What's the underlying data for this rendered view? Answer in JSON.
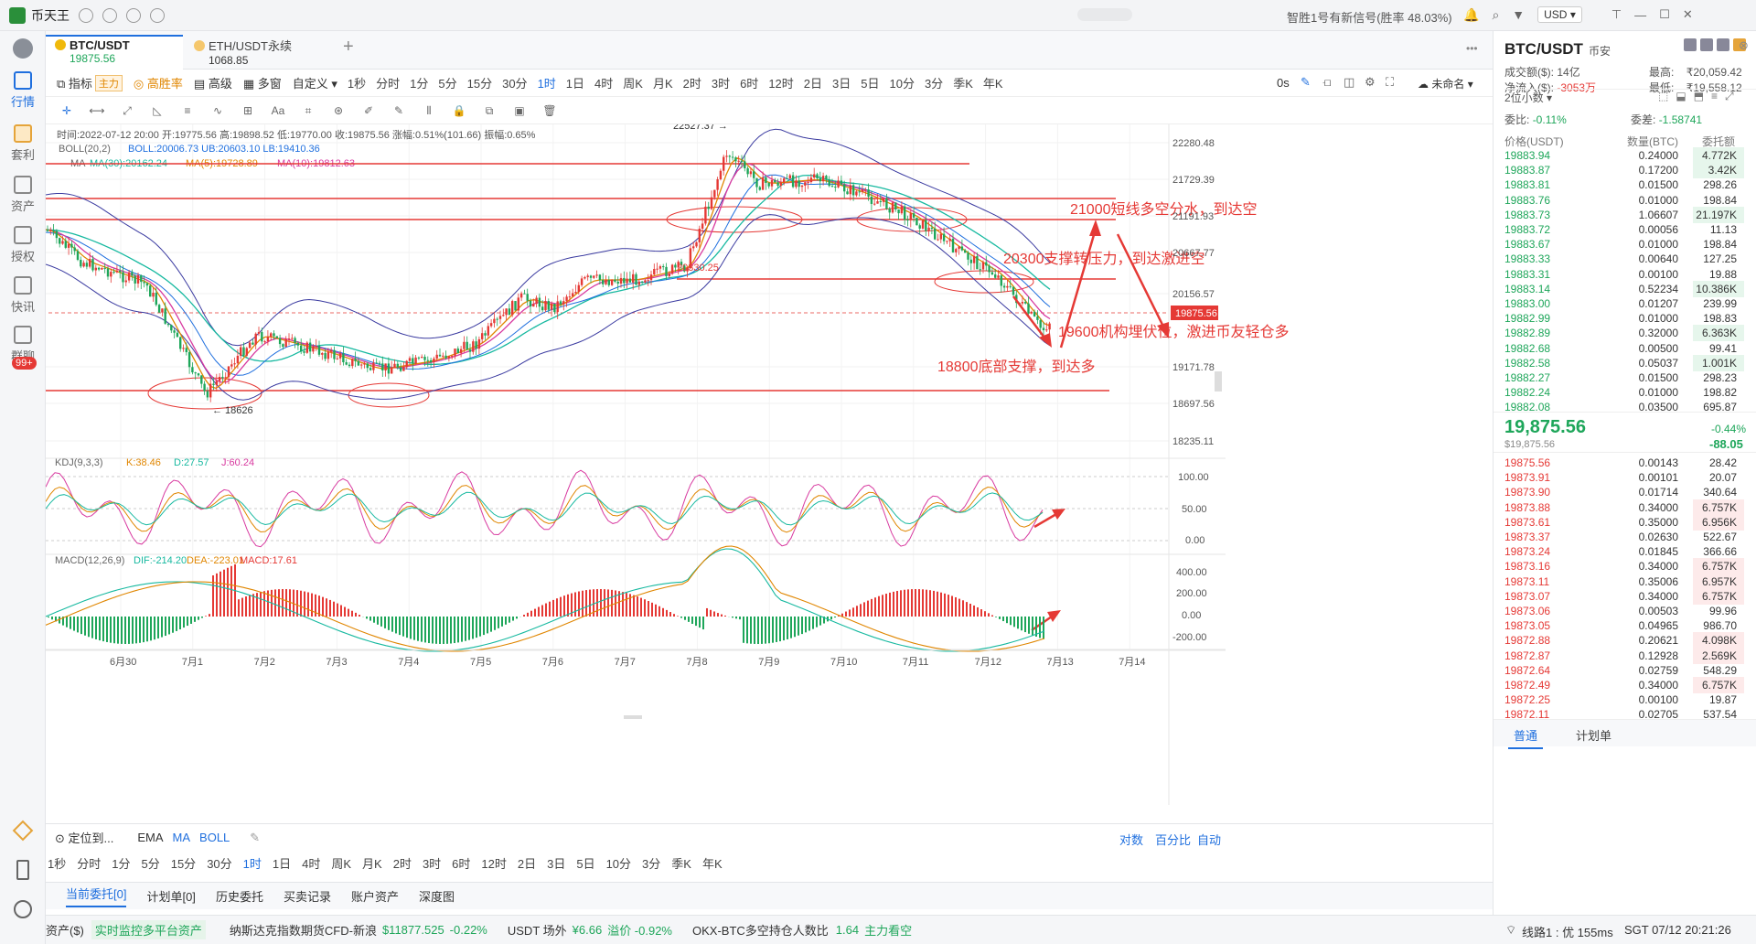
{
  "app": {
    "name": "币天王",
    "signal": "智胜1号有新信号(胜率 48.03%)",
    "currency": "USD"
  },
  "nav": [
    {
      "label": "行情",
      "active": true
    },
    {
      "label": "套利"
    },
    {
      "label": "资产"
    },
    {
      "label": "授权"
    },
    {
      "label": "快讯"
    },
    {
      "label": "群聊",
      "badge": "99+"
    }
  ],
  "tabs": [
    {
      "name": "BTC/USDT",
      "price": "19875.56",
      "active": true
    },
    {
      "name": "ETH/USDT永续",
      "price": "1068.85"
    }
  ],
  "toolbar1": {
    "indicator": "指标",
    "main_tag": "主力",
    "winrate": "高胜率",
    "advanced": "高级",
    "multi": "多窗",
    "custom": "自定义",
    "timeframes": [
      "1秒",
      "分时",
      "1分",
      "5分",
      "15分",
      "30分",
      "1时",
      "1日",
      "4时",
      "周K",
      "月K",
      "2时",
      "3时",
      "6时",
      "12时",
      "2日",
      "3日",
      "5日",
      "10分",
      "3分",
      "季K",
      "年K"
    ],
    "selected_tf": "1时",
    "right_countdown": "0s",
    "unnamed": "未命名"
  },
  "toolbar2_icons": [
    "crosshair-icon",
    "hline-icon",
    "trendline-icon",
    "ray-icon",
    "channel-icon",
    "wave-icon",
    "measure-icon",
    "text-icon",
    "fib-icon",
    "pattern-icon",
    "brush-icon",
    "pen-icon",
    "bars-icon",
    "lock-icon",
    "copy-icon",
    "image-icon",
    "delete-icon"
  ],
  "infobar": {
    "ohlc": "时间:2022-07-12 20:00  开:19775.56  高:19898.52  低:19770.00  收:19875.56  涨幅:0.51%(101.66)  振幅:0.65%",
    "boll": "BOLL(20,2)",
    "boll_vals": "BOLL:20006.73  UB:20603.10  LB:19410.36",
    "ma": "MA",
    "ma30": "MA(30):20162.24",
    "ma5": "MA(5):19728.89",
    "ma10": "MA(10):19812.63"
  },
  "price_axis": [
    "22280.48",
    "21729.39",
    "21191.93",
    "20667.77",
    "20156.57",
    "19171.78",
    "18697.56",
    "18235.11"
  ],
  "current_price_label": "19875.56",
  "high_label": "22527.37 →",
  "low_label": "← 18626",
  "mid_label": "20330.25",
  "x_axis": [
    "6月30",
    "7月1",
    "7月2",
    "7月3",
    "7月4",
    "7月5",
    "7月6",
    "7月7",
    "7月8",
    "7月9",
    "7月10",
    "7月11",
    "7月12",
    "7月13",
    "7月14"
  ],
  "annotations": [
    "21000短线多空分水，到达空",
    "20300支撑转压力，到达激进空",
    "19600机构埋伏位，激进币友轻仓多",
    "18800底部支撑，到达多"
  ],
  "kdj": {
    "title": "KDJ(9,3,3)",
    "k": "K:38.46",
    "d": "D:27.57",
    "j": "J:60.24",
    "axis": [
      "100.00",
      "50.00",
      "0.00"
    ]
  },
  "macd": {
    "title": "MACD(12,26,9)",
    "dif": "DIF:-214.20",
    "dea": "DEA:-223.01",
    "macd": "MACD:17.61",
    "axis": [
      "400.00",
      "200.00",
      "0.00",
      "-200.00"
    ]
  },
  "bottom_toolbar": {
    "locate": "定位到...",
    "ema": "EMA",
    "ma": "MA",
    "boll": "BOLL",
    "log": "对数",
    "pct": "百分比",
    "auto": "自动"
  },
  "timeframes2": [
    "1秒",
    "分时",
    "1分",
    "5分",
    "15分",
    "30分",
    "1时",
    "1日",
    "4时",
    "周K",
    "月K",
    "2时",
    "3时",
    "6时",
    "12时",
    "2日",
    "3日",
    "5日",
    "10分",
    "3分",
    "季K",
    "年K"
  ],
  "order_tabs": [
    "当前委托[0]",
    "计划单[0]",
    "历史委托",
    "买卖记录",
    "账户资产",
    "深度图"
  ],
  "status": {
    "asset": "资产($)",
    "monitor": "实时监控多平台资产",
    "nasdaq": "纳斯达克指数期货CFD-新浪",
    "nasdaq_val": "$11877.525",
    "nasdaq_chg": "-0.22%",
    "usdt": "USDT 场外",
    "usdt_val": "¥6.66",
    "premium": "溢价 -0.92%",
    "okx": "OKX-BTC多空持仓人数比",
    "okx_val": "1.64",
    "okx_tag": "主力看空",
    "line": "线路1 : 优 155ms",
    "time": "SGT 07/12 20:21:26"
  },
  "rpanel": {
    "pair": "BTC/USDT",
    "exchange": "币安",
    "volume_label": "成交额($):",
    "volume": "14亿",
    "high_label": "最高:",
    "high": "₹20,059.42",
    "inflow_label": "净流入($):",
    "inflow": "-3053万",
    "low_label": "最低:",
    "low": "₹19,558.12",
    "decimal": "2位小数",
    "ratio_label": "委比:",
    "ratio": "-0.11%",
    "diff_label": "委差:",
    "diff": "-1.58741",
    "col_price": "价格(USDT)",
    "col_qty": "数量(BTC)",
    "col_total": "委托额",
    "asks": [
      [
        "19883.94",
        "0.24000",
        "4.772K"
      ],
      [
        "19883.87",
        "0.17200",
        "3.42K"
      ],
      [
        "19883.81",
        "0.01500",
        "298.26"
      ],
      [
        "19883.76",
        "0.01000",
        "198.84"
      ],
      [
        "19883.73",
        "1.06607",
        "21.197K"
      ],
      [
        "19883.72",
        "0.00056",
        "11.13"
      ],
      [
        "19883.67",
        "0.01000",
        "198.84"
      ],
      [
        "19883.33",
        "0.00640",
        "127.25"
      ],
      [
        "19883.31",
        "0.00100",
        "19.88"
      ],
      [
        "19883.14",
        "0.52234",
        "10.386K"
      ],
      [
        "19883.00",
        "0.01207",
        "239.99"
      ],
      [
        "19882.99",
        "0.01000",
        "198.83"
      ],
      [
        "19882.89",
        "0.32000",
        "6.363K"
      ],
      [
        "19882.68",
        "0.00500",
        "99.41"
      ],
      [
        "19882.58",
        "0.05037",
        "1.001K"
      ],
      [
        "19882.27",
        "0.01500",
        "298.23"
      ],
      [
        "19882.24",
        "0.01000",
        "198.82"
      ],
      [
        "19882.08",
        "0.03500",
        "695.87"
      ]
    ],
    "last_price": "19,875.56",
    "last_usd": "$19,875.56",
    "change_pct": "-0.44%",
    "change_abs": "-88.05",
    "bids": [
      [
        "19875.56",
        "0.00143",
        "28.42"
      ],
      [
        "19873.91",
        "0.00101",
        "20.07"
      ],
      [
        "19873.90",
        "0.01714",
        "340.64"
      ],
      [
        "19873.88",
        "0.34000",
        "6.757K"
      ],
      [
        "19873.61",
        "0.35000",
        "6.956K"
      ],
      [
        "19873.37",
        "0.02630",
        "522.67"
      ],
      [
        "19873.24",
        "0.01845",
        "366.66"
      ],
      [
        "19873.16",
        "0.34000",
        "6.757K"
      ],
      [
        "19873.11",
        "0.35006",
        "6.957K"
      ],
      [
        "19873.07",
        "0.34000",
        "6.757K"
      ],
      [
        "19873.06",
        "0.00503",
        "99.96"
      ],
      [
        "19873.05",
        "0.04965",
        "986.70"
      ],
      [
        "19872.88",
        "0.20621",
        "4.098K"
      ],
      [
        "19872.87",
        "0.12928",
        "2.569K"
      ],
      [
        "19872.64",
        "0.02759",
        "548.29"
      ],
      [
        "19872.49",
        "0.34000",
        "6.757K"
      ],
      [
        "19872.25",
        "0.00100",
        "19.87"
      ],
      [
        "19872.11",
        "0.02705",
        "537.54"
      ]
    ],
    "tab_normal": "普通",
    "tab_plan": "计划单"
  }
}
